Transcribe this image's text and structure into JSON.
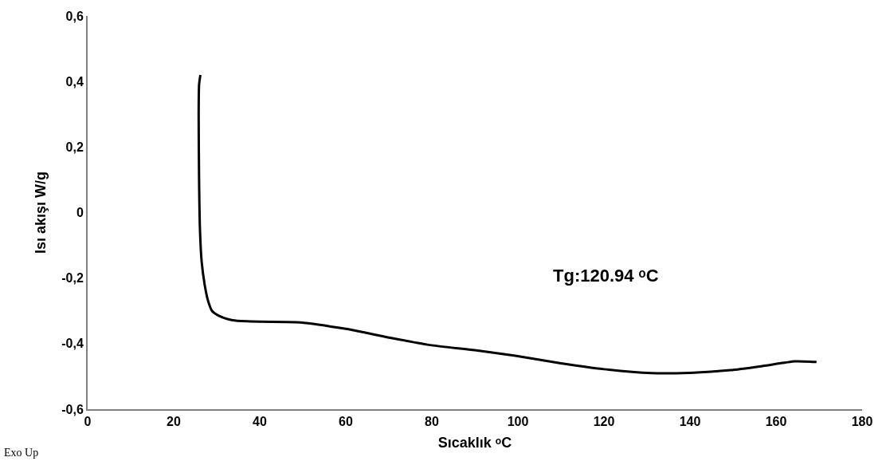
{
  "chart_data": {
    "type": "line",
    "xlabel": "Sıcaklık ᵒC",
    "ylabel": "Isı akışı W/g",
    "annotations": [
      "Tg:120.94 ᵒC",
      "Exo Up"
    ],
    "series": [
      {
        "color": "#000000",
        "x": [
          26.2,
          25.9,
          25.8,
          25.9,
          26.1,
          26.5,
          27.2,
          28.0,
          28.9,
          30.5,
          32.5,
          34.5,
          40,
          49.4,
          60,
          70.3,
          80,
          90,
          99.4,
          110,
          120,
          131,
          140,
          149.4,
          157,
          164.4,
          169.4
        ],
        "values": [
          0.42,
          0.39,
          0.3,
          0.1,
          -0.05,
          -0.15,
          -0.22,
          -0.27,
          -0.3,
          -0.315,
          -0.325,
          -0.33,
          -0.333,
          -0.335,
          -0.355,
          -0.382,
          -0.405,
          -0.42,
          -0.437,
          -0.46,
          -0.478,
          -0.49,
          -0.489,
          -0.481,
          -0.468,
          -0.454,
          -0.456
        ]
      }
    ],
    "xlim": [
      0,
      180
    ],
    "xticks": [
      0,
      20,
      40,
      60,
      80,
      100,
      120,
      140,
      160,
      180
    ],
    "ylim": [
      -0.6,
      0.6
    ],
    "yticks": [
      {
        "value": -0.6,
        "label": "-0,6"
      },
      {
        "value": -0.4,
        "label": "-0,4"
      },
      {
        "value": -0.2,
        "label": "-0,2"
      },
      0,
      {
        "value": 0.2,
        "label": "0,2"
      },
      {
        "value": 0.4,
        "label": "0,4"
      },
      {
        "value": 0.6,
        "label": "0,6"
      }
    ],
    "marker": "none",
    "line_style": "solid"
  }
}
